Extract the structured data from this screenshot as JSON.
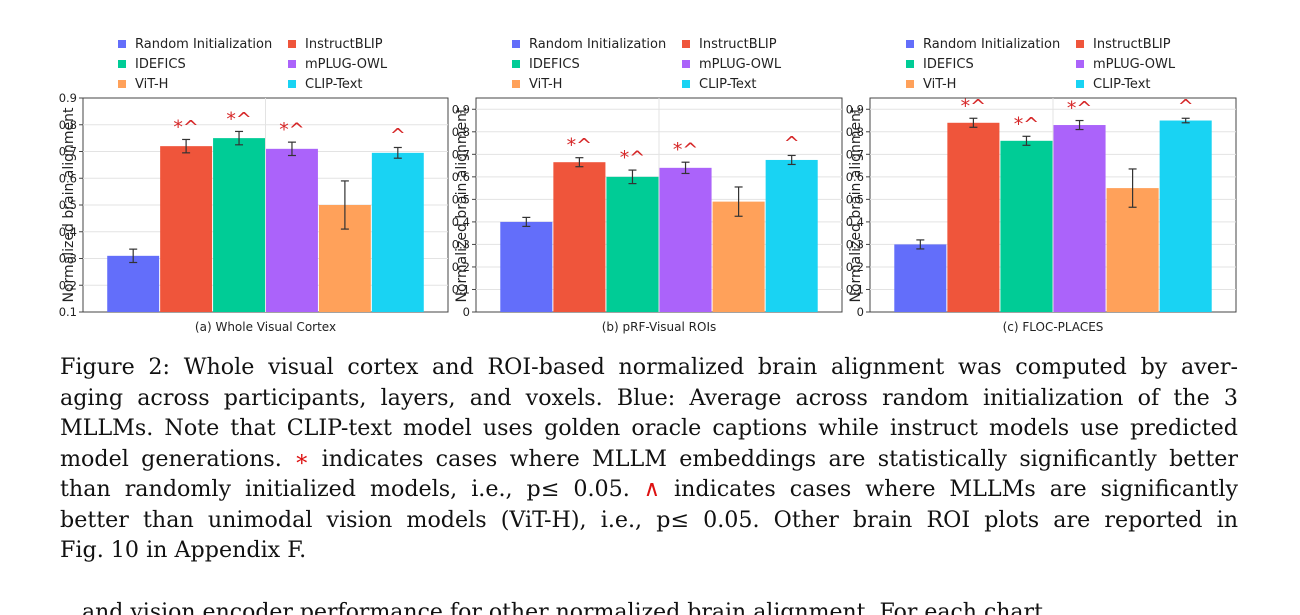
{
  "chart_data": [
    {
      "type": "bar",
      "categories": [
        "Random Initialization",
        "InstructBLIP",
        "IDEFICS",
        "mPLUG-OWL",
        "ViT-H",
        "CLIP-Text"
      ],
      "values": [
        0.31,
        0.72,
        0.75,
        0.71,
        0.5,
        0.695
      ],
      "errors": [
        0.025,
        0.025,
        0.025,
        0.025,
        0.09,
        0.02
      ],
      "annotations": [
        "",
        "*^",
        "*^",
        "*^",
        "",
        "^"
      ],
      "title": "(a) Whole Visual Cortex",
      "ylabel": "Normalized brain alignment",
      "ylim": [
        0.1,
        0.9
      ],
      "yticks": [
        "0.1",
        "0.2",
        "0.3",
        "0.4",
        "0.5",
        "0.6",
        "0.7",
        "0.8",
        "0.9"
      ],
      "grid": true,
      "legend": "top"
    },
    {
      "type": "bar",
      "categories": [
        "Random Initialization",
        "InstructBLIP",
        "IDEFICS",
        "mPLUG-OWL",
        "ViT-H",
        "CLIP-Text"
      ],
      "values": [
        0.4,
        0.665,
        0.6,
        0.64,
        0.49,
        0.675
      ],
      "errors": [
        0.02,
        0.02,
        0.03,
        0.025,
        0.065,
        0.02
      ],
      "annotations": [
        "",
        "*^",
        "*^",
        "*^",
        "",
        "^"
      ],
      "title": "(b) pRF-Visual ROIs",
      "ylabel": "Normalized brain alignment",
      "ylim": [
        0,
        0.95
      ],
      "yticks": [
        "0",
        "0.1",
        "0.2",
        "0.3",
        "0.4",
        "0.5",
        "0.6",
        "0.7",
        "0.8",
        "0.9"
      ],
      "grid": true,
      "legend": "top"
    },
    {
      "type": "bar",
      "categories": [
        "Random Initialization",
        "InstructBLIP",
        "IDEFICS",
        "mPLUG-OWL",
        "ViT-H",
        "CLIP-Text"
      ],
      "values": [
        0.3,
        0.84,
        0.76,
        0.83,
        0.55,
        0.85
      ],
      "errors": [
        0.02,
        0.02,
        0.02,
        0.02,
        0.085,
        0.01
      ],
      "annotations": [
        "",
        "*^",
        "*^",
        "*^",
        "",
        "^"
      ],
      "title": "(c) FLOC-PLACES",
      "ylabel": "Normalized brain alignment",
      "ylim": [
        0,
        0.95
      ],
      "yticks": [
        "0",
        "0.1",
        "0.2",
        "0.3",
        "0.4",
        "0.5",
        "0.6",
        "0.7",
        "0.8",
        "0.9"
      ],
      "grid": true,
      "legend": "top"
    }
  ],
  "colors": {
    "Random Initialization": "#636efa",
    "InstructBLIP": "#ef553b",
    "IDEFICS": "#00cc96",
    "mPLUG-OWL": "#ab63fa",
    "ViT-H": "#ffa15a",
    "CLIP-Text": "#19d3f3",
    "annotation": "#d62728"
  },
  "caption": {
    "lines": [
      "Figure 2: Whole visual cortex and ROI-based normalized brain alignment was computed by aver-",
      "aging across participants, layers, and voxels. Blue: Average across random initialization of the 3",
      "MLLMs. Note that CLIP-text model uses golden oracle captions while instruct models use predicted",
      "model generations.",
      "indicates cases where MLLM embeddings are statistically significantly better",
      "than randomly initialized models, i.e., p≤ 0.05.",
      "indicates cases where MLLMs are significantly",
      "better than unimodal vision models (ViT-H), i.e., p≤ 0.05. Other brain ROI plots are reported in",
      "Fig. 10 in Appendix F."
    ],
    "star_symbol": "∗",
    "wedge_symbol": "∧"
  },
  "next_text_fragment": "and vision encoder performance for other normalized brain alignment. For each chart"
}
